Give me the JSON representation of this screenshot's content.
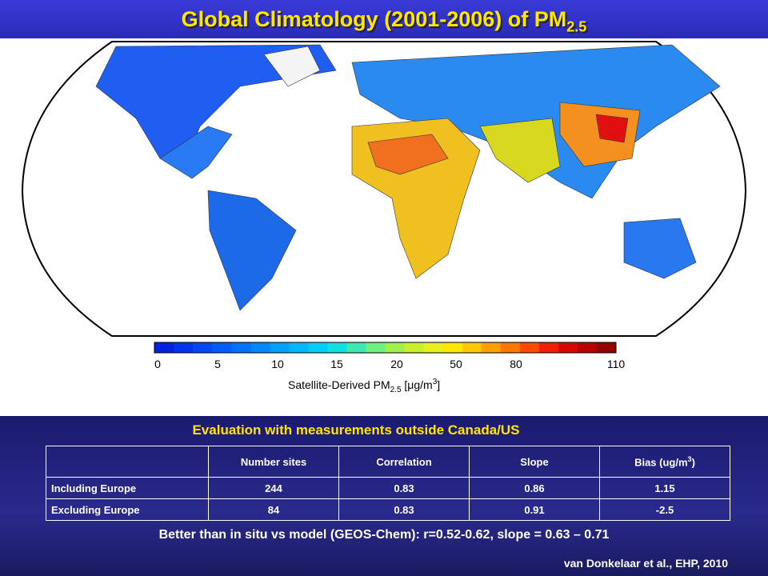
{
  "title": {
    "text": "Global Climatology (2001-2006) of PM",
    "subscript": "2.5"
  },
  "colorbar": {
    "ticks": [
      "0",
      "5",
      "10",
      "15",
      "20",
      "50",
      "80",
      "110"
    ],
    "label": {
      "text": "Satellite-Derived PM",
      "subscript": "2.5",
      "unit_open": " [",
      "mu": "μ",
      "unit": "g/m",
      "sup": "3",
      "unit_close": "]"
    }
  },
  "evaluation": {
    "heading": "Evaluation with measurements outside Canada/US",
    "table": {
      "header": [
        "Number sites",
        "Correlation",
        "Slope"
      ],
      "bias_header": {
        "text": "Bias (ug/m",
        "sup": "3",
        "close": ")"
      },
      "rows": [
        [
          "Including Europe",
          "244",
          "0.83",
          "0.86",
          "1.15"
        ],
        [
          "Excluding Europe",
          "84",
          "0.83",
          "0.91",
          "-2.5"
        ]
      ]
    },
    "note": "Better than in situ vs model (GEOS-Chem): r=0.52-0.62, slope = 0.63 – 0.71",
    "citation": "van Donkelaar et al., EHP, 2010"
  }
}
